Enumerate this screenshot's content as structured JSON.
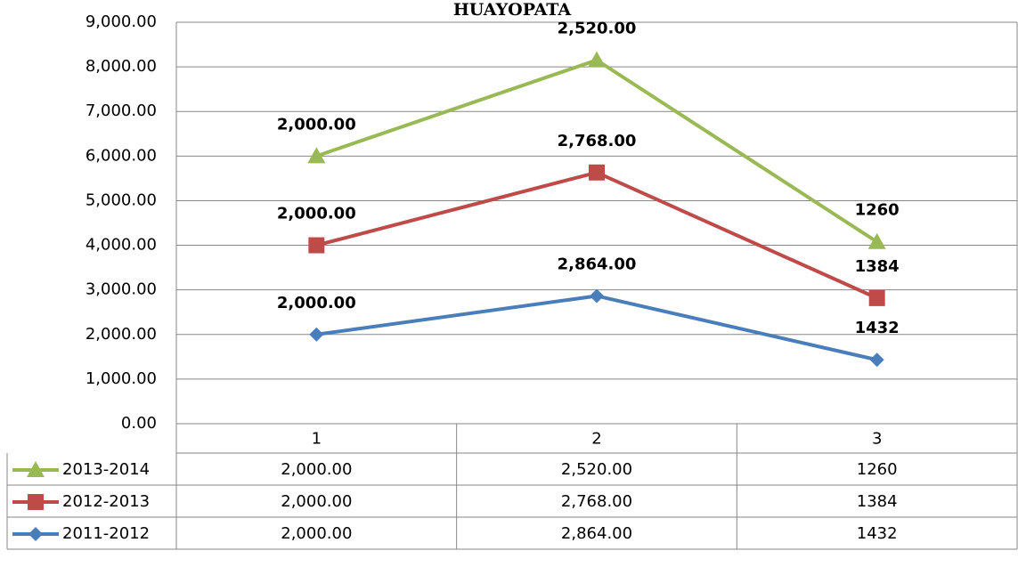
{
  "chart_data": {
    "type": "line",
    "stacked": true,
    "title": "HUAYOPATA",
    "categories": [
      "1",
      "2",
      "3"
    ],
    "series": [
      {
        "name": "2011-2012",
        "color": "#4a7ebb",
        "marker": "diamond",
        "values": [
          2000,
          2864,
          1432
        ],
        "value_labels": [
          "2,000.00",
          "2,864.00",
          "1432"
        ]
      },
      {
        "name": "2012-2013",
        "color": "#be4b48",
        "marker": "square",
        "values": [
          2000,
          2768,
          1384
        ],
        "value_labels": [
          "2,000.00",
          "2,768.00",
          "1384"
        ]
      },
      {
        "name": "2013-2014",
        "color": "#98b954",
        "marker": "triangle",
        "values": [
          2000,
          2520,
          1260
        ],
        "value_labels": [
          "2,000.00",
          "2,520.00",
          "1260"
        ]
      }
    ],
    "ylim": [
      0,
      9000
    ],
    "yticks": [
      {
        "value": 0,
        "label": "0.00"
      },
      {
        "value": 1000,
        "label": "1,000.00"
      },
      {
        "value": 2000,
        "label": "2,000.00"
      },
      {
        "value": 3000,
        "label": "3,000.00"
      },
      {
        "value": 4000,
        "label": "4,000.00"
      },
      {
        "value": 5000,
        "label": "5,000.00"
      },
      {
        "value": 6000,
        "label": "6,000.00"
      },
      {
        "value": 7000,
        "label": "7,000.00"
      },
      {
        "value": 8000,
        "label": "8,000.00"
      },
      {
        "value": 9000,
        "label": "9,000.00"
      }
    ],
    "grid": true,
    "data_table": true
  }
}
